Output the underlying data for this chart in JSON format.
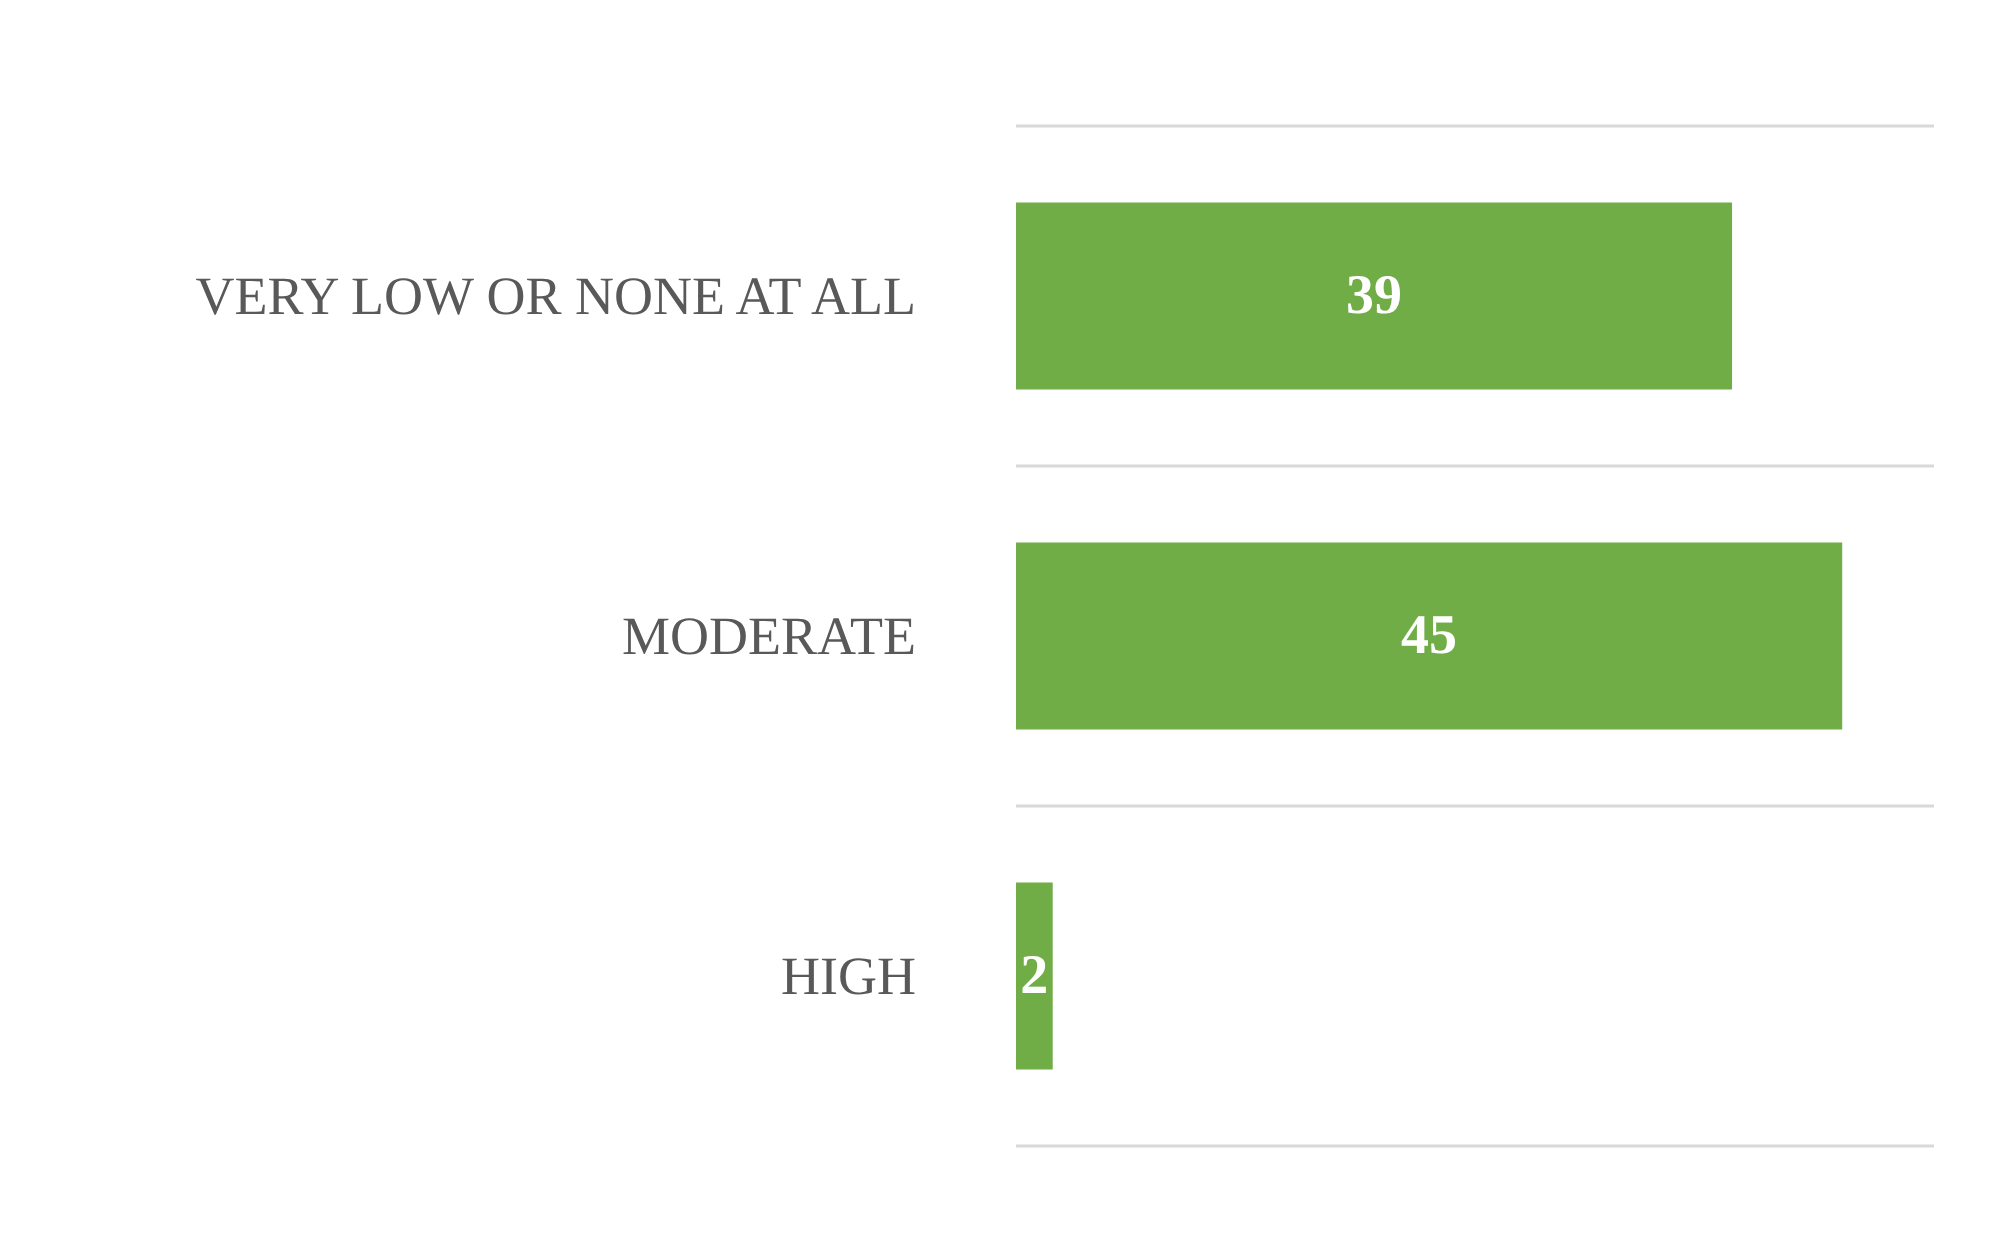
{
  "chart_data": {
    "type": "bar",
    "orientation": "horizontal",
    "categories": [
      "VERY LOW OR NONE AT ALL",
      "MODERATE",
      "HIGH"
    ],
    "values": [
      39,
      45,
      2
    ],
    "color": "#70ad47",
    "data_labels": true,
    "grid": "y"
  }
}
